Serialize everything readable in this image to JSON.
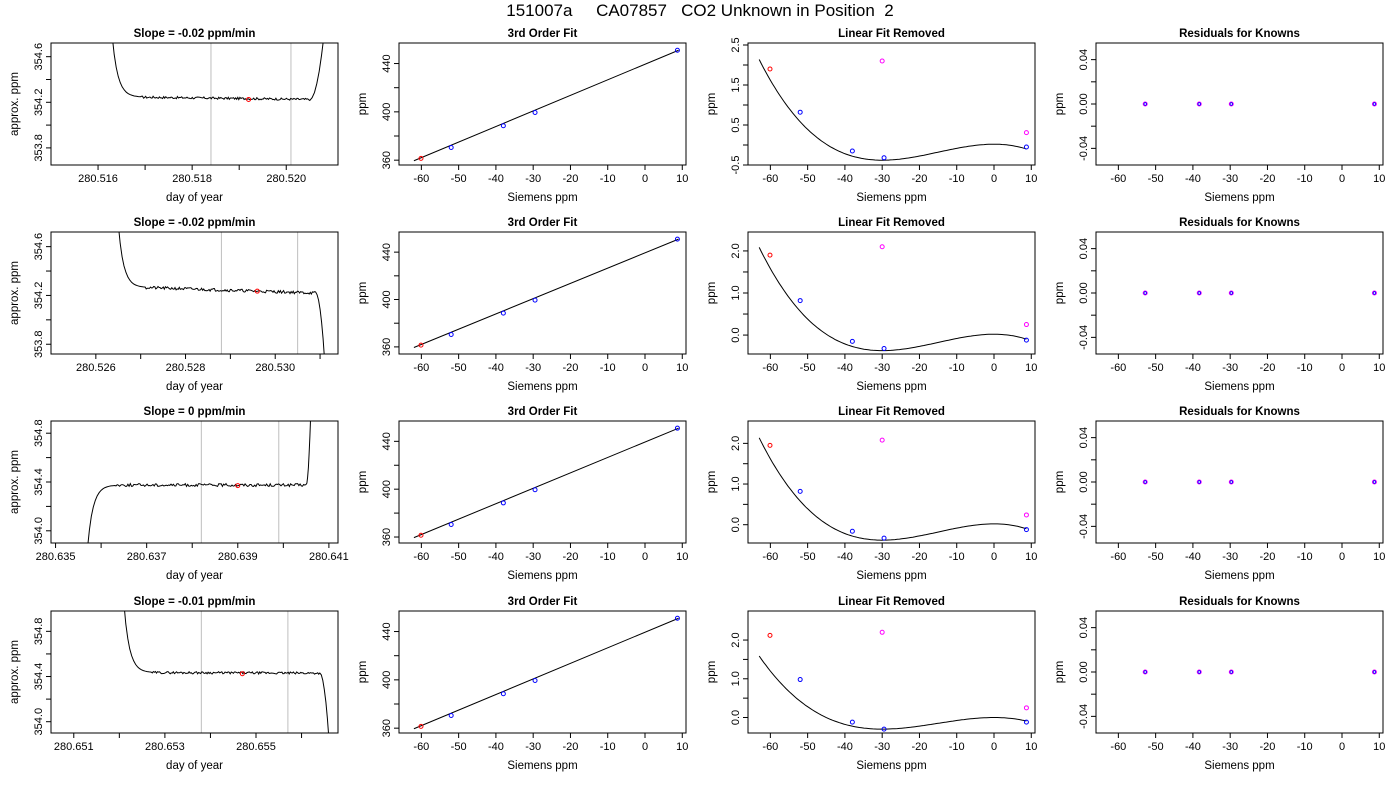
{
  "title": "151007a     CA07857   CO2 Unknown in Position  2",
  "colors": {
    "trace": "#000000",
    "known": "#0000ff",
    "unknown": "#ff0000",
    "residual_unknown": "#ff00ff",
    "window": "#bebebe"
  },
  "chart_data": [
    {
      "type": "line",
      "row": 0,
      "title": "Slope =  -0.02  ppm/min",
      "xlabel": "day of year",
      "ylabel": "approx. ppm",
      "xlim": [
        280.515,
        280.5211
      ],
      "ylim": [
        353.65,
        354.72
      ],
      "xticks": [
        280.516,
        280.518,
        280.52
      ],
      "xtick_labels": [
        "280.516",
        "280.518",
        "280.520"
      ],
      "xminor": [
        280.517,
        280.519
      ],
      "yticks": [
        353.8,
        354.2,
        354.6
      ],
      "ytick_labels": [
        "353.8",
        "354.2",
        "354.6"
      ],
      "yminor": [
        354.0,
        354.4
      ],
      "window": [
        280.5184,
        280.5201
      ],
      "trace": {
        "x_start": 280.5163,
        "x_flat_start": 280.5169,
        "x_flat_end": 280.5205,
        "x_end": 280.5208,
        "y_start": 354.78,
        "level": 354.245,
        "tail_level": 354.225,
        "y_end": 354.78,
        "noise": 0.01
      },
      "point": [
        280.5192,
        354.225
      ]
    },
    {
      "type": "scatter",
      "row": 0,
      "title": "3rd Order Fit",
      "xlabel": "Siemens ppm",
      "ylabel": "ppm",
      "xlim": [
        -66,
        11
      ],
      "ylim": [
        356,
        457
      ],
      "xticks": [
        -60,
        -50,
        -40,
        -30,
        -20,
        -10,
        0,
        10
      ],
      "xtick_labels": [
        "-60",
        "-50",
        "-40",
        "-30",
        "-20",
        "-10",
        "0",
        "10"
      ],
      "yticks": [
        360,
        400,
        440
      ],
      "ytick_labels": [
        "360",
        "400",
        "440"
      ],
      "yminor": [
        380,
        420
      ],
      "fit_line": [
        [
          -62,
          359.5
        ],
        [
          9,
          451
        ]
      ],
      "known_points": [
        [
          -52,
          370.5
        ],
        [
          -38,
          388.5
        ],
        [
          -29.5,
          399.5
        ],
        [
          8.7,
          451
        ]
      ],
      "unknown_points": [
        [
          -60.1,
          361.5
        ]
      ]
    },
    {
      "type": "line",
      "row": 0,
      "title": "Linear Fit Removed",
      "xlabel": "Siemens ppm",
      "ylabel": "ppm",
      "xlim": [
        -66,
        11
      ],
      "ylim": [
        -0.5,
        2.55
      ],
      "xticks": [
        -60,
        -50,
        -40,
        -30,
        -20,
        -10,
        0,
        10
      ],
      "xtick_labels": [
        "-60",
        "-50",
        "-40",
        "-30",
        "-20",
        "-10",
        "0",
        "10"
      ],
      "yticks": [
        -0.5,
        0.5,
        1.5,
        2.5
      ],
      "ytick_labels": [
        "-0.5",
        "0.5",
        "1.5",
        "2.5"
      ],
      "yminor": [
        0.0,
        1.0,
        2.0
      ],
      "curve": {
        "x_from": -63,
        "x_to": 8.7,
        "y_at_x0": 0.02,
        "y_at_min": -0.38,
        "x_min": -30
      },
      "known_points": [
        [
          -52,
          0.82
        ],
        [
          -38,
          -0.15
        ],
        [
          -29.5,
          -0.32
        ],
        [
          8.7,
          -0.05
        ]
      ],
      "unknown_points": [
        [
          -60.1,
          1.9
        ]
      ],
      "residual_points": [
        [
          -30,
          2.1
        ],
        [
          8.7,
          0.31
        ]
      ]
    },
    {
      "type": "scatter",
      "row": 0,
      "title": "Residuals for Knowns",
      "xlabel": "Siemens ppm",
      "ylabel": "ppm",
      "xlim": [
        -66,
        11
      ],
      "ylim": [
        -0.055,
        0.055
      ],
      "xticks": [
        -60,
        -50,
        -40,
        -30,
        -20,
        -10,
        0,
        10
      ],
      "xtick_labels": [
        "-60",
        "-50",
        "-40",
        "-30",
        "-20",
        "-10",
        "0",
        "10"
      ],
      "yticks": [
        -0.04,
        0.0,
        0.04
      ],
      "ytick_labels": [
        "-0.04",
        "0.00",
        "0.04"
      ],
      "yminor": [
        -0.02,
        0.02
      ],
      "points": [
        [
          -52.8,
          0.0
        ],
        [
          -38.3,
          0.0
        ],
        [
          -29.7,
          0.0
        ],
        [
          8.7,
          0.0
        ]
      ]
    },
    {
      "type": "line",
      "row": 1,
      "title": "Slope =  -0.02  ppm/min",
      "xlabel": "day of year",
      "ylabel": "approx. ppm",
      "xlim": [
        280.525,
        280.5314
      ],
      "ylim": [
        353.72,
        354.72
      ],
      "xticks": [
        280.526,
        280.528,
        280.53
      ],
      "xtick_labels": [
        "280.526",
        "280.528",
        "280.530"
      ],
      "xminor": [
        280.527,
        280.529,
        280.531
      ],
      "yticks": [
        353.8,
        354.2,
        354.6
      ],
      "ytick_labels": [
        "353.8",
        "354.2",
        "354.6"
      ],
      "yminor": [
        354.0,
        354.4
      ],
      "window": [
        280.5288,
        280.5305
      ],
      "trace": {
        "x_start": 280.5265,
        "x_flat_start": 280.5271,
        "x_flat_end": 280.5309,
        "x_end": 280.5311,
        "y_start": 354.78,
        "level": 354.265,
        "tail_level": 354.22,
        "y_end": 353.68,
        "noise": 0.012
      },
      "point": [
        280.5296,
        354.235
      ]
    },
    {
      "type": "scatter",
      "row": 1,
      "title": "3rd Order Fit",
      "xlabel": "Siemens ppm",
      "ylabel": "ppm",
      "xlim": [
        -66,
        11
      ],
      "ylim": [
        354,
        457
      ],
      "xticks": [
        -60,
        -50,
        -40,
        -30,
        -20,
        -10,
        0,
        10
      ],
      "xtick_labels": [
        "-60",
        "-50",
        "-40",
        "-30",
        "-20",
        "-10",
        "0",
        "10"
      ],
      "yticks": [
        360,
        400,
        440
      ],
      "ytick_labels": [
        "360",
        "400",
        "440"
      ],
      "yminor": [
        380,
        420
      ],
      "fit_line": [
        [
          -62,
          359.5
        ],
        [
          9,
          451
        ]
      ],
      "known_points": [
        [
          -52,
          370.5
        ],
        [
          -38,
          388.5
        ],
        [
          -29.5,
          399.5
        ],
        [
          8.7,
          451
        ]
      ],
      "unknown_points": [
        [
          -60.1,
          361.5
        ]
      ]
    },
    {
      "type": "line",
      "row": 1,
      "title": "Linear Fit Removed",
      "xlabel": "Siemens ppm",
      "ylabel": "ppm",
      "xlim": [
        -66,
        11
      ],
      "ylim": [
        -0.45,
        2.45
      ],
      "xticks": [
        -60,
        -50,
        -40,
        -30,
        -20,
        -10,
        0,
        10
      ],
      "xtick_labels": [
        "-60",
        "-50",
        "-40",
        "-30",
        "-20",
        "-10",
        "0",
        "10"
      ],
      "yticks": [
        0.0,
        1.0,
        2.0
      ],
      "ytick_labels": [
        "0.0",
        "1.0",
        "2.0"
      ],
      "yminor": [
        0.5,
        1.5
      ],
      "curve": {
        "x_from": -63,
        "x_to": 8.7,
        "y_at_x0": 0.02,
        "y_at_min": -0.37,
        "x_min": -30
      },
      "known_points": [
        [
          -52,
          0.82
        ],
        [
          -38,
          -0.15
        ],
        [
          -29.5,
          -0.32
        ],
        [
          8.7,
          -0.12
        ]
      ],
      "unknown_points": [
        [
          -60.1,
          1.9
        ]
      ],
      "residual_points": [
        [
          -30,
          2.1
        ],
        [
          8.7,
          0.25
        ]
      ]
    },
    {
      "type": "scatter",
      "row": 1,
      "title": "Residuals for Knowns",
      "xlabel": "Siemens ppm",
      "ylabel": "ppm",
      "xlim": [
        -66,
        11
      ],
      "ylim": [
        -0.055,
        0.055
      ],
      "xticks": [
        -60,
        -50,
        -40,
        -30,
        -20,
        -10,
        0,
        10
      ],
      "xtick_labels": [
        "-60",
        "-50",
        "-40",
        "-30",
        "-20",
        "-10",
        "0",
        "10"
      ],
      "yticks": [
        -0.04,
        0.0,
        0.04
      ],
      "ytick_labels": [
        "-0.04",
        "0.00",
        "0.04"
      ],
      "yminor": [
        -0.02,
        0.02
      ],
      "points": [
        [
          -52.8,
          0.0
        ],
        [
          -38.3,
          0.0
        ],
        [
          -29.7,
          0.0
        ],
        [
          8.7,
          0.0
        ]
      ]
    },
    {
      "type": "line",
      "row": 2,
      "title": "Slope =  0  ppm/min",
      "xlabel": "day of year",
      "ylabel": "approx. ppm",
      "xlim": [
        280.6349,
        280.6412
      ],
      "ylim": [
        353.9,
        354.9
      ],
      "xticks": [
        280.635,
        280.637,
        280.639,
        280.641
      ],
      "xtick_labels": [
        "280.635",
        "280.637",
        "280.639",
        "280.641"
      ],
      "xminor": [
        280.636,
        280.638,
        280.64
      ],
      "yticks": [
        354.0,
        354.4,
        354.8
      ],
      "ytick_labels": [
        "354.0",
        "354.4",
        "354.8"
      ],
      "yminor": [
        354.2,
        354.6
      ],
      "window": [
        280.6382,
        280.6399
      ],
      "trace": {
        "x_start": 280.6357,
        "x_flat_start": 280.6363,
        "x_flat_end": 280.6405,
        "x_end": 280.6406,
        "y_start": 353.85,
        "level": 354.375,
        "tail_level": 354.375,
        "y_end": 354.95,
        "noise": 0.012
      },
      "point": [
        280.639,
        354.37
      ]
    },
    {
      "type": "scatter",
      "row": 2,
      "title": "3rd Order Fit",
      "xlabel": "Siemens ppm",
      "ylabel": "ppm",
      "xlim": [
        -66,
        11
      ],
      "ylim": [
        355,
        457
      ],
      "xticks": [
        -60,
        -50,
        -40,
        -30,
        -20,
        -10,
        0,
        10
      ],
      "xtick_labels": [
        "-60",
        "-50",
        "-40",
        "-30",
        "-20",
        "-10",
        "0",
        "10"
      ],
      "yticks": [
        360,
        400,
        440
      ],
      "ytick_labels": [
        "360",
        "400",
        "440"
      ],
      "yminor": [
        380,
        420
      ],
      "fit_line": [
        [
          -62,
          359.5
        ],
        [
          9,
          451
        ]
      ],
      "known_points": [
        [
          -52,
          370.5
        ],
        [
          -38,
          388.5
        ],
        [
          -29.5,
          399.5
        ],
        [
          8.7,
          451
        ]
      ],
      "unknown_points": [
        [
          -60.1,
          361.5
        ]
      ]
    },
    {
      "type": "line",
      "row": 2,
      "title": "Linear Fit Removed",
      "xlabel": "Siemens ppm",
      "ylabel": "ppm",
      "xlim": [
        -66,
        11
      ],
      "ylim": [
        -0.45,
        2.55
      ],
      "xticks": [
        -60,
        -50,
        -40,
        -30,
        -20,
        -10,
        0,
        10
      ],
      "xtick_labels": [
        "-60",
        "-50",
        "-40",
        "-30",
        "-20",
        "-10",
        "0",
        "10"
      ],
      "yticks": [
        0.0,
        1.0,
        2.0
      ],
      "ytick_labels": [
        "0.0",
        "1.0",
        "2.0"
      ],
      "yminor": [
        0.5,
        1.5
      ],
      "curve": {
        "x_from": -63,
        "x_to": 8.7,
        "y_at_x0": 0.02,
        "y_at_min": -0.38,
        "x_min": -30
      },
      "known_points": [
        [
          -52,
          0.82
        ],
        [
          -38,
          -0.16
        ],
        [
          -29.5,
          -0.33
        ],
        [
          8.7,
          -0.12
        ]
      ],
      "unknown_points": [
        [
          -60.1,
          1.95
        ]
      ],
      "residual_points": [
        [
          -30,
          2.08
        ],
        [
          8.7,
          0.24
        ]
      ]
    },
    {
      "type": "scatter",
      "row": 2,
      "title": "Residuals for Knowns",
      "xlabel": "Siemens ppm",
      "ylabel": "ppm",
      "xlim": [
        -66,
        11
      ],
      "ylim": [
        -0.055,
        0.055
      ],
      "xticks": [
        -60,
        -50,
        -40,
        -30,
        -20,
        -10,
        0,
        10
      ],
      "xtick_labels": [
        "-60",
        "-50",
        "-40",
        "-30",
        "-20",
        "-10",
        "0",
        "10"
      ],
      "yticks": [
        -0.04,
        0.0,
        0.04
      ],
      "ytick_labels": [
        "-0.04",
        "0.00",
        "0.04"
      ],
      "yminor": [
        -0.02,
        0.02
      ],
      "points": [
        [
          -52.8,
          0.0
        ],
        [
          -38.3,
          0.0
        ],
        [
          -29.7,
          0.0
        ],
        [
          8.7,
          0.0
        ]
      ]
    },
    {
      "type": "line",
      "row": 3,
      "title": "Slope =  -0.01  ppm/min",
      "xlabel": "day of year",
      "ylabel": "approx. ppm",
      "xlim": [
        280.6505,
        280.6568
      ],
      "ylim": [
        353.9,
        354.98
      ],
      "xticks": [
        280.651,
        280.653,
        280.655
      ],
      "xtick_labels": [
        "280.651",
        "280.653",
        "280.655"
      ],
      "xminor": [
        280.652,
        280.654,
        280.656
      ],
      "yticks": [
        354.0,
        354.4,
        354.8
      ],
      "ytick_labels": [
        "354.0",
        "354.4",
        "354.8"
      ],
      "yminor": [
        354.2,
        354.6
      ],
      "window": [
        280.6538,
        280.6557
      ],
      "trace": {
        "x_start": 280.6521,
        "x_flat_start": 280.6527,
        "x_flat_end": 280.6564,
        "x_end": 280.6566,
        "y_start": 355.05,
        "level": 354.435,
        "tail_level": 354.43,
        "y_end": 353.85,
        "noise": 0.01
      },
      "point": [
        280.6547,
        354.425
      ]
    },
    {
      "type": "scatter",
      "row": 3,
      "title": "3rd Order Fit",
      "xlabel": "Siemens ppm",
      "ylabel": "ppm",
      "xlim": [
        -66,
        11
      ],
      "ylim": [
        356,
        457
      ],
      "xticks": [
        -60,
        -50,
        -40,
        -30,
        -20,
        -10,
        0,
        10
      ],
      "xtick_labels": [
        "-60",
        "-50",
        "-40",
        "-30",
        "-20",
        "-10",
        "0",
        "10"
      ],
      "yticks": [
        360,
        400,
        440
      ],
      "ytick_labels": [
        "360",
        "400",
        "440"
      ],
      "yminor": [
        380,
        420
      ],
      "fit_line": [
        [
          -62,
          359.5
        ],
        [
          9,
          451
        ]
      ],
      "known_points": [
        [
          -52,
          370.5
        ],
        [
          -38,
          388.5
        ],
        [
          -29.5,
          399.5
        ],
        [
          8.7,
          451
        ]
      ],
      "unknown_points": [
        [
          -60.1,
          361.5
        ]
      ]
    },
    {
      "type": "line",
      "row": 3,
      "title": "Linear Fit Removed",
      "xlabel": "Siemens ppm",
      "ylabel": "ppm",
      "xlim": [
        -66,
        11
      ],
      "ylim": [
        -0.4,
        2.75
      ],
      "xticks": [
        -60,
        -50,
        -40,
        -30,
        -20,
        -10,
        0,
        10
      ],
      "xtick_labels": [
        "-60",
        "-50",
        "-40",
        "-30",
        "-20",
        "-10",
        "0",
        "10"
      ],
      "yticks": [
        0.0,
        1.0,
        2.0
      ],
      "ytick_labels": [
        "0.0",
        "1.0",
        "2.0"
      ],
      "yminor": [
        0.5,
        1.5
      ],
      "curve": {
        "x_from": -63,
        "x_to": 8.7,
        "y_at_x0": 0.0,
        "y_at_min": -0.3,
        "x_min": -30
      },
      "known_points": [
        [
          -52,
          0.98
        ],
        [
          -38,
          -0.12
        ],
        [
          -29.5,
          -0.3
        ],
        [
          8.7,
          -0.12
        ]
      ],
      "unknown_points": [
        [
          -60.1,
          2.12
        ]
      ],
      "residual_points": [
        [
          -30,
          2.2
        ],
        [
          8.7,
          0.25
        ]
      ]
    },
    {
      "type": "scatter",
      "row": 3,
      "title": "Residuals for Knowns",
      "xlabel": "Siemens ppm",
      "ylabel": "ppm",
      "xlim": [
        -66,
        11
      ],
      "ylim": [
        -0.055,
        0.055
      ],
      "xticks": [
        -60,
        -50,
        -40,
        -30,
        -20,
        -10,
        0,
        10
      ],
      "xtick_labels": [
        "-60",
        "-50",
        "-40",
        "-30",
        "-20",
        "-10",
        "0",
        "10"
      ],
      "yticks": [
        -0.04,
        0.0,
        0.04
      ],
      "ytick_labels": [
        "-0.04",
        "0.00",
        "0.04"
      ],
      "yminor": [
        -0.02,
        0.02
      ],
      "points": [
        [
          -52.8,
          0.0
        ],
        [
          -38.3,
          0.0
        ],
        [
          -29.7,
          0.0
        ],
        [
          8.7,
          0.0
        ]
      ]
    }
  ]
}
